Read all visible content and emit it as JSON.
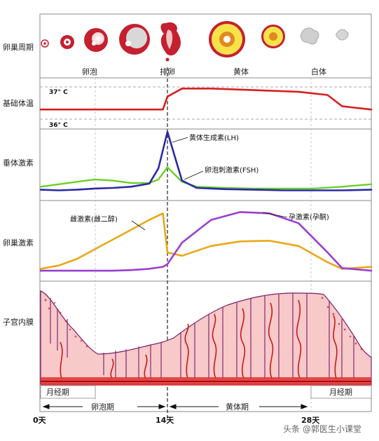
{
  "row_labels": {
    "ovarian_cycle": "卵巢周期",
    "basal_temp": "基础体温",
    "pituitary": "垂体激素",
    "ovarian_hormones": "卵巢激素",
    "endometrium": "子宫内膜"
  },
  "stage_labels": {
    "follicle": "卵泡",
    "ovulation": "排卵",
    "corpus_luteum": "黄体",
    "corpus_albicans": "白体"
  },
  "temperature_marks": {
    "high": "37° C",
    "low": "36° C"
  },
  "hormone_labels": {
    "lh": "黄体生成素(LH)",
    "fsh": "卵泡刺激素(FSH)",
    "estrogen": "雌激素(雌二醇)",
    "progesterone": "孕激素(孕酮)"
  },
  "phase_labels": {
    "menses_start": "月经期",
    "menses_end": "月经期",
    "follicular": "卵泡期",
    "luteal": "黄体期"
  },
  "day_labels": {
    "day0": "0天",
    "day14": "14天",
    "day28": "28天"
  },
  "watermark": "头条 @郭医生小课堂",
  "colors": {
    "temperature": "#d42020",
    "lh": "#2a2aa8",
    "fsh": "#6ccf2a",
    "estrogen": "#e8a818",
    "progesterone": "#9a3ed0",
    "endometrium_fill": "#f7c9c9",
    "vessel": "#c81818",
    "follicle": "#c42030"
  },
  "chart_data": [
    {
      "type": "line",
      "subtitle": "基础体温",
      "x": [
        0,
        2,
        4,
        6,
        8,
        10,
        12,
        13.5,
        14,
        15,
        17,
        20,
        23,
        25,
        26,
        28
      ],
      "series": [
        {
          "values": [
            36.3,
            36.3,
            36.3,
            36.3,
            36.3,
            36.3,
            36.3,
            36.3,
            36.7,
            36.95,
            36.95,
            36.9,
            36.85,
            36.75,
            36.4,
            36.3
          ]
        }
      ],
      "ylim": [
        36,
        37
      ]
    },
    {
      "type": "line",
      "subtitle": "垂体激素",
      "x": [
        0,
        2,
        4,
        6,
        8,
        10,
        12,
        13,
        14,
        15,
        16,
        18,
        20,
        22,
        24,
        26,
        28
      ],
      "series": [
        {
          "name": "黄体生成素(LH)",
          "values": [
            0.05,
            0.04,
            0.05,
            0.07,
            0.08,
            0.1,
            0.15,
            0.4,
            1.0,
            0.2,
            0.08,
            0.06,
            0.05,
            0.04,
            0.04,
            0.04,
            0.05
          ]
        },
        {
          "name": "卵泡刺激素(FSH)",
          "values": [
            0.1,
            0.14,
            0.18,
            0.22,
            0.2,
            0.16,
            0.16,
            0.22,
            0.42,
            0.18,
            0.1,
            0.08,
            0.07,
            0.07,
            0.07,
            0.1,
            0.14
          ]
        }
      ]
    },
    {
      "type": "line",
      "subtitle": "卵巢激素",
      "x": [
        0,
        2,
        4,
        6,
        8,
        10,
        12,
        13.5,
        14,
        15,
        17,
        19,
        21,
        23,
        25,
        26,
        28
      ],
      "series": [
        {
          "name": "雌激素(雌二醇)",
          "values": [
            0.05,
            0.1,
            0.2,
            0.35,
            0.5,
            0.65,
            0.8,
            0.9,
            0.3,
            0.25,
            0.4,
            0.47,
            0.48,
            0.4,
            0.15,
            0.05,
            0.08
          ]
        },
        {
          "name": "孕激素(孕酮)",
          "values": [
            0.02,
            0.02,
            0.02,
            0.02,
            0.02,
            0.03,
            0.05,
            0.08,
            0.12,
            0.45,
            0.8,
            0.92,
            0.9,
            0.75,
            0.3,
            0.06,
            0.02
          ]
        }
      ]
    }
  ]
}
